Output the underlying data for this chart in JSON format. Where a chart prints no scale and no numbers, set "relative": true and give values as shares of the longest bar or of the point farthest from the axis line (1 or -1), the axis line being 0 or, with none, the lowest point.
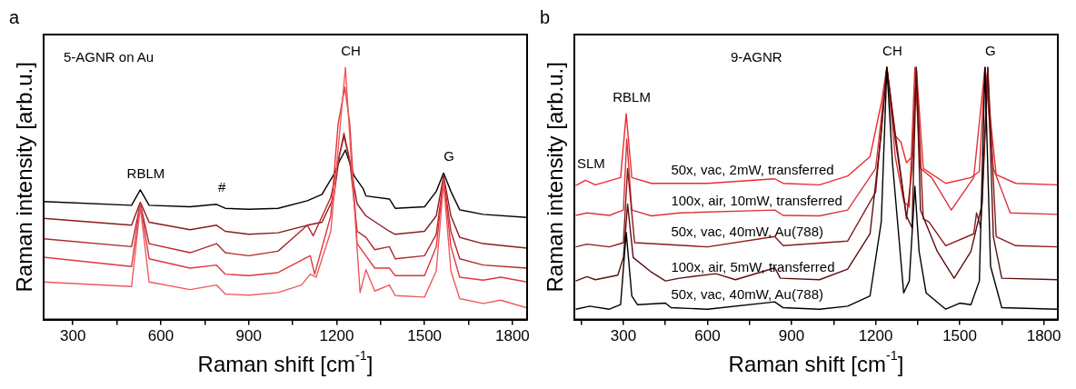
{
  "chart_data": [
    {
      "type": "line",
      "title": "a",
      "subtitle": "5-AGNR on Au",
      "xlabel": "Raman shift [cm$^{-1}$]",
      "ylabel": "Raman intensity [arb.u.]",
      "relative": true,
      "xlim": [
        200,
        1850
      ],
      "xticks": [
        300,
        {
          "value": 450,
          "label": null
        },
        600,
        {
          "value": 750,
          "label": null
        },
        900,
        {
          "value": 1050,
          "label": null
        },
        1200,
        {
          "value": 1350,
          "label": null
        },
        1500,
        {
          "value": 1650,
          "label": null
        },
        1800
      ],
      "grid": false,
      "legend": false,
      "marker": "none",
      "line_style": "solid",
      "annotations": [
        {
          "text": "RBLM",
          "x": 530,
          "y": 0.514
        },
        {
          "text": "#",
          "x": 790,
          "y": 0.457
        },
        {
          "text": "CH",
          "x": 1230,
          "y": 1
        },
        {
          "text": "G",
          "x": 1565,
          "y": 0.581
        }
      ],
      "series": [
        {
          "color": "#000000",
          "x": [
            200,
            500,
            530,
            560,
            700,
            790,
            820,
            900,
            1000,
            1100,
            1150,
            1190,
            1210,
            1230,
            1260,
            1290,
            1300,
            1380,
            1400,
            1500,
            1540,
            1565,
            1590,
            1620,
            1700,
            1850
          ],
          "values": [
            0.468,
            0.453,
            0.514,
            0.453,
            0.447,
            0.457,
            0.441,
            0.437,
            0.441,
            0.471,
            0.496,
            0.575,
            0.629,
            0.672,
            0.569,
            0.52,
            0.49,
            0.478,
            0.441,
            0.447,
            0.508,
            0.581,
            0.508,
            0.435,
            0.417,
            0.405
          ]
        },
        {
          "color": "#8b1a1f",
          "x": [
            200,
            500,
            530,
            560,
            700,
            790,
            820,
            900,
            1000,
            1100,
            1150,
            1190,
            1210,
            1225,
            1240,
            1270,
            1300,
            1380,
            1400,
            1500,
            1540,
            1565,
            1590,
            1620,
            1700,
            1850
          ],
          "values": [
            0.401,
            0.374,
            0.465,
            0.386,
            0.356,
            0.374,
            0.35,
            0.338,
            0.344,
            0.374,
            0.386,
            0.484,
            0.654,
            0.727,
            0.654,
            0.459,
            0.411,
            0.35,
            0.338,
            0.35,
            0.411,
            0.569,
            0.411,
            0.326,
            0.301,
            0.283
          ]
        },
        {
          "color": "#b0282d",
          "x": [
            200,
            500,
            530,
            560,
            700,
            790,
            820,
            900,
            1000,
            1100,
            1120,
            1180,
            1210,
            1225,
            1245,
            1270,
            1300,
            1330,
            1380,
            1400,
            1500,
            1540,
            1565,
            1590,
            1620,
            1700,
            1850
          ],
          "values": [
            0.32,
            0.289,
            0.459,
            0.301,
            0.265,
            0.301,
            0.265,
            0.253,
            0.271,
            0.374,
            0.332,
            0.484,
            0.654,
            0.739,
            0.629,
            0.35,
            0.326,
            0.277,
            0.289,
            0.241,
            0.253,
            0.338,
            0.557,
            0.35,
            0.241,
            0.216,
            0.204
          ]
        },
        {
          "color": "#e2363b",
          "x": [
            200,
            500,
            530,
            560,
            700,
            790,
            820,
            900,
            1000,
            1090,
            1110,
            1125,
            1180,
            1205,
            1228,
            1245,
            1270,
            1300,
            1330,
            1380,
            1400,
            1500,
            1540,
            1565,
            1590,
            1620,
            1700,
            1760,
            1850
          ],
          "values": [
            0.247,
            0.21,
            0.459,
            0.241,
            0.204,
            0.216,
            0.18,
            0.174,
            0.186,
            0.241,
            0.253,
            0.18,
            0.411,
            0.775,
            0.921,
            0.775,
            0.301,
            0.253,
            0.204,
            0.204,
            0.174,
            0.174,
            0.289,
            0.557,
            0.289,
            0.168,
            0.156,
            0.168,
            0.149
          ]
        },
        {
          "color": "#ee5a5e",
          "x": [
            200,
            500,
            530,
            560,
            700,
            790,
            820,
            900,
            1000,
            1080,
            1110,
            1130,
            1180,
            1210,
            1230,
            1250,
            1280,
            1300,
            1330,
            1380,
            1400,
            1500,
            1540,
            1565,
            1590,
            1620,
            1700,
            1760,
            1850
          ],
          "values": [
            0.149,
            0.131,
            0.447,
            0.149,
            0.119,
            0.137,
            0.101,
            0.097,
            0.107,
            0.137,
            0.18,
            0.168,
            0.35,
            0.739,
            1,
            0.629,
            0.107,
            0.198,
            0.113,
            0.137,
            0.095,
            0.089,
            0.192,
            0.544,
            0.192,
            0.083,
            0.064,
            0.077,
            0.046
          ]
        }
      ]
    },
    {
      "type": "line",
      "title": "b",
      "subtitle": "9-AGNR",
      "xlabel": "Raman shift [cm$^{-1}$]",
      "ylabel": "Raman intensity [arb.u.]",
      "relative": true,
      "xlim": [
        125,
        1850
      ],
      "xticks": [
        {
          "value": 150,
          "label": null
        },
        300,
        {
          "value": 450,
          "label": null
        },
        600,
        {
          "value": 750,
          "label": null
        },
        900,
        {
          "value": 1050,
          "label": null
        },
        1200,
        {
          "value": 1350,
          "label": null
        },
        1500,
        {
          "value": 1650,
          "label": null
        },
        1800
      ],
      "grid": false,
      "legend": false,
      "marker": "none",
      "line_style": "solid",
      "annotations": [
        {
          "text": "SLM",
          "x": 165,
          "y": 0.552
        },
        {
          "text": "RBLM",
          "x": 310,
          "y": 0.816
        },
        {
          "text": "CH",
          "x": 1240,
          "y": 1
        },
        {
          "text": "G",
          "x": 1590,
          "y": 1
        }
      ],
      "series": [
        {
          "name": "50x, vac, 2mW, transferred",
          "color": "#ee2a2e",
          "x": [
            130,
            165,
            200,
            290,
            310,
            330,
            400,
            600,
            840,
            870,
            1000,
            1100,
            1180,
            1220,
            1240,
            1270,
            1290,
            1310,
            1330,
            1345,
            1370,
            1450,
            1540,
            1570,
            1590,
            1630,
            1700,
            1850
          ],
          "values": [
            0.531,
            0.552,
            0.534,
            0.563,
            0.816,
            0.563,
            0.54,
            0.54,
            0.558,
            0.54,
            0.534,
            0.569,
            0.646,
            0.857,
            1,
            0.728,
            0.704,
            0.622,
            0.646,
            1,
            0.599,
            0.54,
            0.563,
            0.587,
            1,
            0.575,
            0.54,
            0.534
          ]
        },
        {
          "name": "100x, air, 10mW, transferred",
          "color": "#d9363b",
          "x": [
            130,
            170,
            250,
            300,
            312,
            330,
            400,
            500,
            840,
            870,
            1000,
            1100,
            1200,
            1240,
            1270,
            1300,
            1320,
            1340,
            1360,
            1400,
            1470,
            1550,
            1590,
            1620,
            1680,
            1850
          ],
          "values": [
            0.413,
            0.423,
            0.413,
            0.434,
            0.716,
            0.434,
            0.411,
            0.423,
            0.434,
            0.413,
            0.411,
            0.434,
            0.599,
            1,
            0.646,
            0.469,
            0.446,
            1,
            0.599,
            0.563,
            0.434,
            0.563,
            1,
            0.599,
            0.423,
            0.417
          ]
        },
        {
          "name": "50x, vac, 40mW, Au(788)",
          "color": "#8b1a1a",
          "x": [
            130,
            170,
            250,
            300,
            315,
            340,
            600,
            840,
            870,
            1100,
            1200,
            1240,
            1270,
            1290,
            1310,
            1330,
            1345,
            1370,
            1390,
            1450,
            1550,
            1560,
            1575,
            1600,
            1630,
            1700,
            1850
          ],
          "values": [
            0.288,
            0.299,
            0.288,
            0.305,
            0.599,
            0.305,
            0.288,
            0.329,
            0.293,
            0.311,
            0.505,
            1,
            0.739,
            0.575,
            0.399,
            0.599,
            1,
            0.399,
            0.387,
            0.293,
            0.34,
            0.423,
            0.364,
            1,
            0.329,
            0.293,
            0.288
          ]
        },
        {
          "name": "100x, air, 5mW, transferred",
          "color": "#5a0f0f",
          "x": [
            130,
            170,
            200,
            280,
            300,
            315,
            335,
            400,
            450,
            500,
            630,
            700,
            840,
            860,
            1000,
            1100,
            1180,
            1220,
            1240,
            1270,
            1310,
            1330,
            1345,
            1360,
            1420,
            1480,
            1540,
            1580,
            1600,
            1620,
            1650,
            1850
          ],
          "values": [
            0.153,
            0.17,
            0.158,
            0.176,
            0.246,
            0.458,
            0.246,
            0.188,
            0.153,
            0.164,
            0.182,
            0.158,
            0.205,
            0.164,
            0.158,
            0.2,
            0.34,
            0.739,
            1,
            0.716,
            0.411,
            0.364,
            1,
            0.434,
            0.27,
            0.164,
            0.27,
            0.458,
            1,
            0.329,
            0.164,
            0.158
          ]
        },
        {
          "name": "50x, vac, 40mW, Au(788)",
          "color": "#000000",
          "x": [
            130,
            180,
            250,
            290,
            310,
            330,
            350,
            450,
            470,
            600,
            840,
            870,
            1000,
            1100,
            1180,
            1220,
            1240,
            1260,
            1300,
            1320,
            1340,
            1355,
            1380,
            1450,
            1500,
            1540,
            1570,
            1590,
            1610,
            1650,
            1850
          ],
          "values": [
            0.041,
            0.053,
            0.041,
            0.059,
            0.346,
            0.094,
            0.059,
            0.065,
            0.047,
            0.041,
            0.07,
            0.047,
            0.041,
            0.053,
            0.094,
            0.387,
            1,
            0.622,
            0.106,
            0.153,
            0.528,
            0.27,
            0.106,
            0.041,
            0.065,
            0.059,
            0.153,
            1,
            0.211,
            0.047,
            0.041
          ]
        }
      ]
    }
  ]
}
